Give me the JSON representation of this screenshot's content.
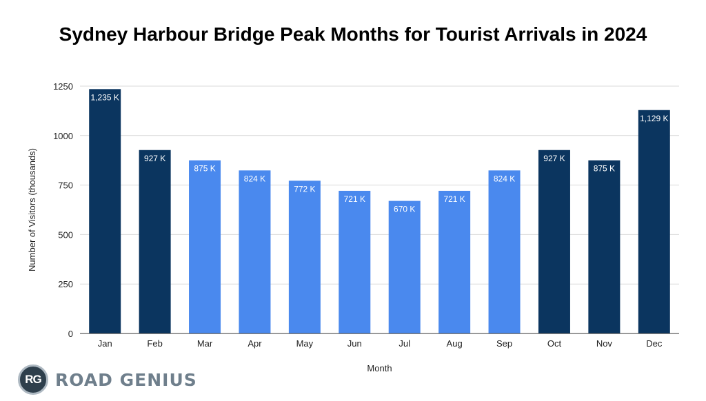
{
  "chart_data": {
    "type": "bar",
    "title": "Sydney Harbour Bridge Peak Months for Tourist Arrivals in 2024",
    "xlabel": "Month",
    "ylabel": "Number of Visitors (thousands)",
    "ylim": [
      0,
      1250
    ],
    "yticks": [
      "0",
      "250",
      "500",
      "750",
      "1000",
      "1250"
    ],
    "categories": [
      "Jan",
      "Feb",
      "Mar",
      "Apr",
      "May",
      "Jun",
      "Jul",
      "Aug",
      "Sep",
      "Oct",
      "Nov",
      "Dec"
    ],
    "values": [
      1235,
      927,
      875,
      824,
      772,
      721,
      670,
      721,
      824,
      927,
      875,
      1129
    ],
    "data_labels": [
      "1,235 K",
      "927 K",
      "875 K",
      "824 K",
      "772 K",
      "721 K",
      "670 K",
      "721 K",
      "824 K",
      "927 K",
      "875 K",
      "1,129 K"
    ],
    "bar_colors": [
      "#0b355f",
      "#0b355f",
      "#4a89ee",
      "#4a89ee",
      "#4a89ee",
      "#4a89ee",
      "#4a89ee",
      "#4a89ee",
      "#4a89ee",
      "#0b355f",
      "#0b355f",
      "#0b355f"
    ],
    "grid": true,
    "legend": "none"
  },
  "logo": {
    "badge": "RG",
    "text": "ROAD GENIUS"
  }
}
